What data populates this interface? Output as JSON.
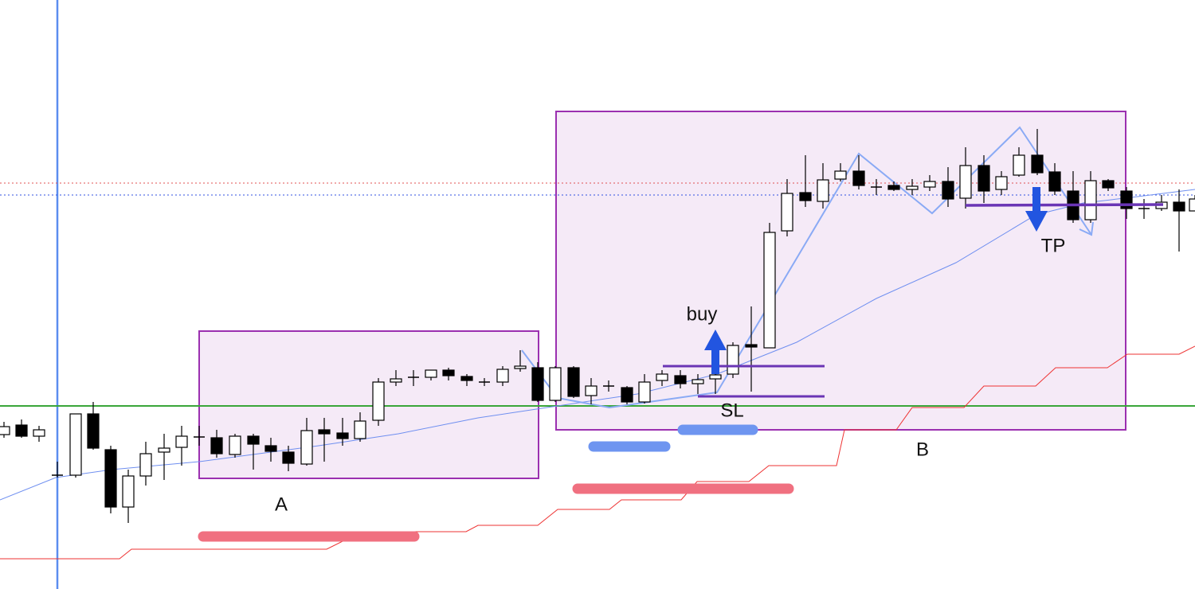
{
  "annotations": {
    "zone_a": "A",
    "zone_b": "B",
    "entry": "buy",
    "stop_loss": "SL",
    "take_profit": "TP"
  }
}
